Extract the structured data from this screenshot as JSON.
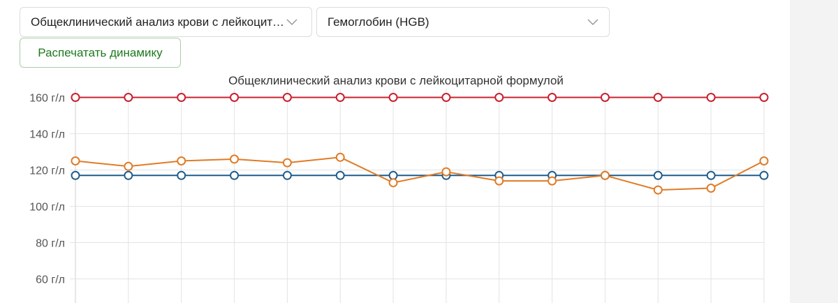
{
  "controls": {
    "analysis_select": "Общеклинический анализ крови с лейкоцитарной формулой",
    "parameter_select": "Гемоглобин (HGB)",
    "print_button": "Распечатать динамику"
  },
  "icons": {
    "analysis_dropdown": "chevron-down-icon",
    "parameter_dropdown": "chevron-down-icon"
  },
  "colors": {
    "upper_limit": "#c8202f",
    "lower_limit": "#1f5c8c",
    "value": "#e07b25",
    "print_button_text": "#1d7a1d"
  },
  "chart_data": {
    "type": "line",
    "title": "Общеклинический анализ крови с лейкоцитарной формулой",
    "y_tick_labels": [
      "160 г/л",
      "140 г/л",
      "120 г/л",
      "100 г/л",
      "80 г/л",
      "60 г/л"
    ],
    "ylim": [
      52,
      166
    ],
    "grid": true,
    "point_count": 14,
    "series": [
      {
        "values": [
          160,
          160,
          160,
          160,
          160,
          160,
          160,
          160,
          160,
          160,
          160,
          160,
          160,
          160
        ],
        "color": "#c8202f"
      },
      {
        "values": [
          117,
          117,
          117,
          117,
          117,
          117,
          117,
          117,
          117,
          117,
          117,
          117,
          117,
          117
        ],
        "color": "#1f5c8c"
      },
      {
        "values": [
          125,
          122,
          125,
          126,
          124,
          127,
          113,
          119,
          114,
          114,
          117,
          109,
          110,
          125
        ],
        "color": "#e07b25"
      }
    ]
  }
}
